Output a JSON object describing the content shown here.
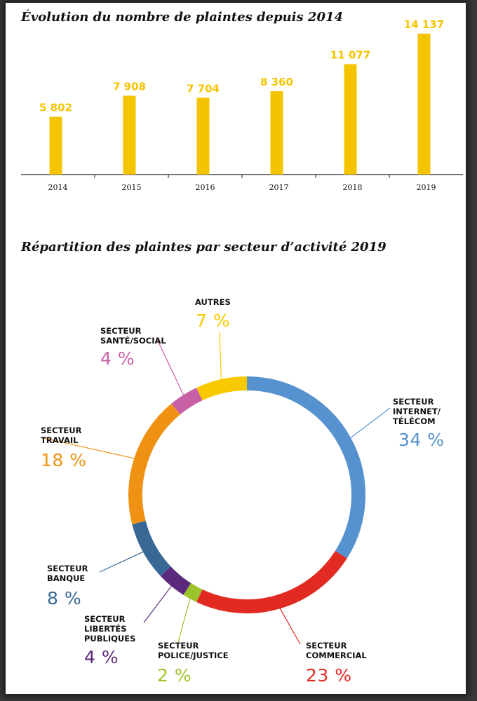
{
  "bar_chart": {
    "title": "Évolution du nombre de plaintes depuis 2014",
    "value_labels": [
      "5 802",
      "7 908",
      "7 704",
      "8 360",
      "11 077",
      "14 137"
    ],
    "value_color": "#f5c400"
  },
  "donut_chart": {
    "title": "Répartition des plaintes par secteur d’activité 2019",
    "segments": [
      {
        "key": "internet",
        "label_lines": [
          "SECTEUR",
          "INTERNET/",
          "TÉLÉCOM"
        ],
        "pct": "34 %"
      },
      {
        "key": "commercial",
        "label_lines": [
          "SECTEUR",
          "COMMERCIAL"
        ],
        "pct": "23 %"
      },
      {
        "key": "police",
        "label_lines": [
          "SECTEUR",
          "POLICE/JUSTICE"
        ],
        "pct": "2 %"
      },
      {
        "key": "libertes",
        "label_lines": [
          "SECTEUR",
          "LIBERTÉS",
          "PUBLIQUES"
        ],
        "pct": "4 %"
      },
      {
        "key": "banque",
        "label_lines": [
          "SECTEUR",
          "BANQUE"
        ],
        "pct": "8 %"
      },
      {
        "key": "travail",
        "label_lines": [
          "SECTEUR",
          "TRAVAIL"
        ],
        "pct": "18 %"
      },
      {
        "key": "sante",
        "label_lines": [
          "SECTEUR",
          "SANTÉ/SOCIAL"
        ],
        "pct": "4 %"
      },
      {
        "key": "autres",
        "label_lines": [
          "AUTRES"
        ],
        "pct": "7 %"
      }
    ]
  },
  "chart_data": [
    {
      "type": "bar",
      "title": "Évolution du nombre de plaintes depuis 2014",
      "categories": [
        "2014",
        "2015",
        "2016",
        "2017",
        "2018",
        "2019"
      ],
      "values": [
        5802,
        7908,
        7704,
        8360,
        11077,
        14137
      ],
      "ylim": [
        0,
        14137
      ],
      "grid": false,
      "xlabel": "",
      "ylabel": "",
      "colors": {
        "bar": "#f5c400",
        "value_label": "#f5c400"
      }
    },
    {
      "type": "pie",
      "title": "Répartition des plaintes par secteur d’activité 2019",
      "donut": true,
      "categories": [
        "SECTEUR INTERNET/ TÉLÉCOM",
        "SECTEUR COMMERCIAL",
        "SECTEUR POLICE/JUSTICE",
        "SECTEUR LIBERTÉS PUBLIQUES",
        "SECTEUR BANQUE",
        "SECTEUR TRAVAIL",
        "SECTEUR SANTÉ/SOCIAL",
        "AUTRES"
      ],
      "values": [
        34,
        23,
        2,
        4,
        8,
        18,
        4,
        7
      ],
      "unit": "%",
      "colors": [
        "#5792d0",
        "#e12a22",
        "#9cc42a",
        "#5b2a7c",
        "#386895",
        "#ef9214",
        "#c860a6",
        "#f9c900"
      ]
    }
  ]
}
